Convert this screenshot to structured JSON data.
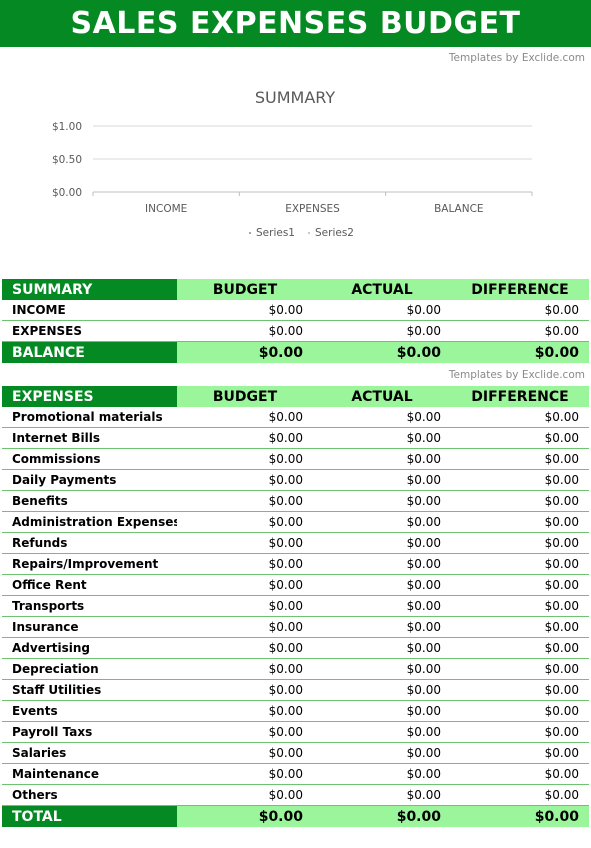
{
  "title": "SALES EXPENSES BUDGET",
  "credit": "Templates by Exclide.com",
  "chart_data": {
    "type": "bar",
    "title": "SUMMARY",
    "categories": [
      "INCOME",
      "EXPENSES",
      "BALANCE"
    ],
    "series": [
      {
        "name": "Series1",
        "values": [
          0,
          0,
          0
        ],
        "color": "#a5a5a5"
      },
      {
        "name": "Series2",
        "values": [
          0,
          0,
          0
        ],
        "color": "#c9c9c9"
      }
    ],
    "y_ticks": [
      "$0.00",
      "$0.50",
      "$1.00"
    ],
    "ylim": [
      0,
      1
    ],
    "grid": true,
    "legend": "bottom"
  },
  "summary": {
    "columns": [
      "SUMMARY",
      "BUDGET",
      "ACTUAL",
      "DIFFERENCE"
    ],
    "rows": [
      {
        "label": "INCOME",
        "budget": "$0.00",
        "actual": "$0.00",
        "difference": "$0.00"
      },
      {
        "label": "EXPENSES",
        "budget": "$0.00",
        "actual": "$0.00",
        "difference": "$0.00"
      }
    ],
    "balance": {
      "label": "BALANCE",
      "budget": "$0.00",
      "actual": "$0.00",
      "difference": "$0.00"
    }
  },
  "expenses": {
    "columns": [
      "EXPENSES",
      "BUDGET",
      "ACTUAL",
      "DIFFERENCE"
    ],
    "rows": [
      {
        "label": "Promotional materials",
        "budget": "$0.00",
        "actual": "$0.00",
        "difference": "$0.00"
      },
      {
        "label": "Internet Bills",
        "budget": "$0.00",
        "actual": "$0.00",
        "difference": "$0.00"
      },
      {
        "label": "Commissions",
        "budget": "$0.00",
        "actual": "$0.00",
        "difference": "$0.00"
      },
      {
        "label": "Daily Payments",
        "budget": "$0.00",
        "actual": "$0.00",
        "difference": "$0.00"
      },
      {
        "label": "Benefits",
        "budget": "$0.00",
        "actual": "$0.00",
        "difference": "$0.00"
      },
      {
        "label": "Administration Expenses",
        "budget": "$0.00",
        "actual": "$0.00",
        "difference": "$0.00"
      },
      {
        "label": "Refunds",
        "budget": "$0.00",
        "actual": "$0.00",
        "difference": "$0.00"
      },
      {
        "label": "Repairs/Improvement",
        "budget": "$0.00",
        "actual": "$0.00",
        "difference": "$0.00"
      },
      {
        "label": "Office Rent",
        "budget": "$0.00",
        "actual": "$0.00",
        "difference": "$0.00"
      },
      {
        "label": "Transports",
        "budget": "$0.00",
        "actual": "$0.00",
        "difference": "$0.00"
      },
      {
        "label": "Insurance",
        "budget": "$0.00",
        "actual": "$0.00",
        "difference": "$0.00"
      },
      {
        "label": "Advertising",
        "budget": "$0.00",
        "actual": "$0.00",
        "difference": "$0.00"
      },
      {
        "label": "Depreciation",
        "budget": "$0.00",
        "actual": "$0.00",
        "difference": "$0.00"
      },
      {
        "label": "Staff Utilities",
        "budget": "$0.00",
        "actual": "$0.00",
        "difference": "$0.00"
      },
      {
        "label": "Events",
        "budget": "$0.00",
        "actual": "$0.00",
        "difference": "$0.00"
      },
      {
        "label": "Payroll Taxs",
        "budget": "$0.00",
        "actual": "$0.00",
        "difference": "$0.00"
      },
      {
        "label": "Salaries",
        "budget": "$0.00",
        "actual": "$0.00",
        "difference": "$0.00"
      },
      {
        "label": "Maintenance",
        "budget": "$0.00",
        "actual": "$0.00",
        "difference": "$0.00"
      },
      {
        "label": "Others",
        "budget": "$0.00",
        "actual": "$0.00",
        "difference": "$0.00"
      }
    ],
    "total": {
      "label": "TOTAL",
      "budget": "$0.00",
      "actual": "$0.00",
      "difference": "$0.00"
    }
  }
}
